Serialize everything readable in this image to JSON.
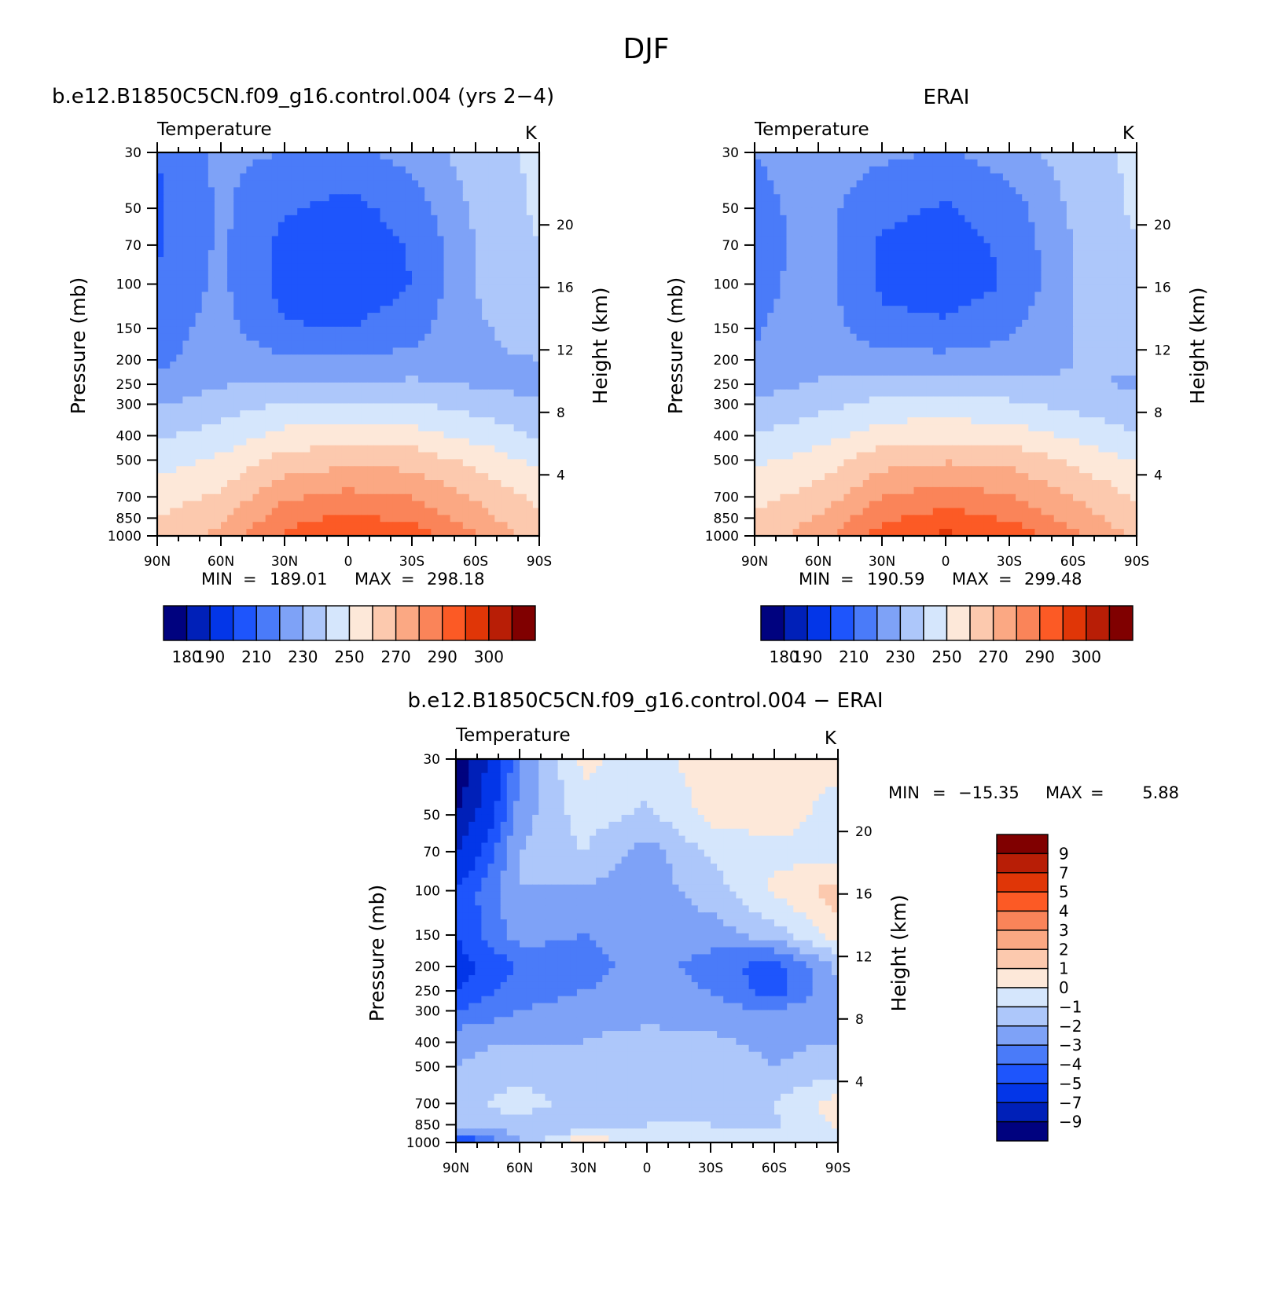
{
  "title": "DJF",
  "panels": [
    {
      "title": "b.e12.B1850C5CN.f09_g16.control.004 (yrs 2−4)",
      "variable": "Temperature",
      "units": "K",
      "min_label": "MIN",
      "min": "189.01",
      "max_label": "MAX",
      "max": "298.18"
    },
    {
      "title": "ERAI",
      "variable": "Temperature",
      "units": "K",
      "min_label": "MIN",
      "min": "190.59",
      "max_label": "MAX",
      "max": "299.48"
    },
    {
      "title": "b.e12.B1850C5CN.f09_g16.control.004 − ERAI",
      "variable": "Temperature",
      "units": "K",
      "min_label": "MIN",
      "min": "−15.35",
      "max_label": "MAX",
      "max": "5.88"
    }
  ],
  "axes": {
    "ylabel_left": "Pressure (mb)",
    "ylabel_right": "Height (km)",
    "pressure_ticks": [
      "30",
      "50",
      "70",
      "100",
      "150",
      "200",
      "250",
      "300",
      "400",
      "500",
      "700",
      "850",
      "1000"
    ],
    "height_ticks": [
      "20",
      "16",
      "12",
      "8",
      "4"
    ],
    "lat_ticks": [
      "90N",
      "60N",
      "30N",
      "0",
      "30S",
      "60S",
      "90S"
    ]
  },
  "colorbars": {
    "temperature": {
      "labels": [
        "180",
        "190",
        "210",
        "230",
        "250",
        "270",
        "290",
        "300"
      ],
      "colors": [
        "#00027f",
        "#0020b8",
        "#0336e8",
        "#1e55fc",
        "#4a7bf9",
        "#7ea2f7",
        "#adc7fa",
        "#d5e6fc",
        "#fde8d9",
        "#fcc9ae",
        "#fba883",
        "#fa8459",
        "#fc5a25",
        "#e03607",
        "#b81e06",
        "#800000"
      ]
    },
    "difference": {
      "labels": [
        "9",
        "7",
        "5",
        "4",
        "3",
        "2",
        "1",
        "0",
        "−1",
        "−2",
        "−3",
        "−4",
        "−5",
        "−7",
        "−9"
      ],
      "colors": [
        "#800000",
        "#b81e06",
        "#e03607",
        "#fc5a25",
        "#fa8459",
        "#fba883",
        "#fcc9ae",
        "#fde8d9",
        "#d5e6fc",
        "#adc7fa",
        "#7ea2f7",
        "#4a7bf9",
        "#1e55fc",
        "#0336e8",
        "#0020b8",
        "#00027f"
      ]
    }
  },
  "chart_data": [
    {
      "type": "heatmap",
      "title": "b.e12.B1850C5CN.f09_g16.control.004 (yrs 2−4)",
      "variable": "Temperature",
      "units": "K",
      "x": [
        -90,
        -60,
        -30,
        0,
        30,
        60,
        90
      ],
      "y_pressure": [
        30,
        50,
        70,
        100,
        150,
        200,
        250,
        300,
        400,
        500,
        700,
        850,
        1000
      ],
      "values": [
        [
          200,
          212,
          210,
          207,
          214,
          225,
          232
        ],
        [
          198,
          212,
          201,
          197,
          204,
          222,
          232
        ],
        [
          198,
          212,
          197,
          194,
          201,
          220,
          230
        ],
        [
          203,
          212,
          196,
          192,
          200,
          220,
          228
        ],
        [
          205,
          214,
          201,
          200,
          206,
          219,
          223
        ],
        [
          207,
          216,
          211,
          211,
          213,
          219,
          220
        ],
        [
          213,
          219,
          222,
          222,
          222,
          219,
          217
        ],
        [
          219,
          225,
          231,
          232,
          231,
          226,
          221
        ],
        [
          229,
          234,
          243,
          245,
          244,
          237,
          229
        ],
        [
          236,
          242,
          254,
          257,
          256,
          247,
          237
        ],
        [
          245,
          252,
          268,
          273,
          270,
          259,
          248
        ],
        [
          250,
          258,
          276,
          282,
          278,
          264,
          251
        ],
        [
          252,
          263,
          282,
          290,
          285,
          271,
          255
        ]
      ],
      "min": 189.01,
      "max": 298.18
    },
    {
      "type": "heatmap",
      "title": "ERAI",
      "variable": "Temperature",
      "units": "K",
      "x": [
        -90,
        -60,
        -30,
        0,
        30,
        60,
        90
      ],
      "y_pressure": [
        30,
        50,
        70,
        100,
        150,
        200,
        250,
        300,
        400,
        500,
        700,
        850,
        1000
      ],
      "values": [
        [
          210,
          214,
          212,
          209,
          215,
          225,
          232
        ],
        [
          207,
          214,
          203,
          199,
          205,
          222,
          232
        ],
        [
          206,
          214,
          198,
          195,
          202,
          220,
          229
        ],
        [
          207,
          214,
          198,
          194,
          201,
          220,
          226
        ],
        [
          209,
          216,
          203,
          202,
          208,
          220,
          224
        ],
        [
          211,
          217,
          213,
          213,
          214,
          220,
          221
        ],
        [
          216,
          221,
          224,
          224,
          223,
          221,
          219
        ],
        [
          221,
          227,
          233,
          234,
          232,
          227,
          222
        ],
        [
          231,
          236,
          245,
          247,
          245,
          238,
          231
        ],
        [
          238,
          244,
          256,
          259,
          257,
          248,
          239
        ],
        [
          247,
          254,
          270,
          275,
          271,
          260,
          249
        ],
        [
          252,
          261,
          278,
          284,
          279,
          266,
          253
        ],
        [
          254,
          266,
          284,
          292,
          287,
          273,
          257
        ]
      ],
      "min": 190.59,
      "max": 299.48
    },
    {
      "type": "heatmap",
      "title": "b.e12.B1850C5CN.f09_g16.control.004 − ERAI",
      "variable": "Temperature",
      "units": "K",
      "x": [
        -90,
        -60,
        -30,
        0,
        30,
        60,
        90
      ],
      "y_pressure": [
        30,
        50,
        70,
        100,
        150,
        200,
        250,
        300,
        400,
        500,
        700,
        850,
        1000
      ],
      "values": [
        [
          -11,
          -3,
          0.3,
          -0.5,
          0.6,
          0.3,
          0.4
        ],
        [
          -9,
          -2.5,
          -0.5,
          -1.2,
          0.3,
          0.6,
          -0.5
        ],
        [
          -7,
          -2,
          -1,
          -2.5,
          -0.8,
          -0.3,
          -0.5
        ],
        [
          -5,
          -2,
          -2.2,
          -2.5,
          -1.5,
          0.2,
          1.5
        ],
        [
          -5,
          -2.5,
          -3,
          -2.5,
          -2.5,
          -1.5,
          0.5
        ],
        [
          -5.5,
          -4,
          -3.5,
          -2.5,
          -3.5,
          -4.5,
          -1.8
        ],
        [
          -5,
          -3.5,
          -3,
          -2.5,
          -3,
          -4.5,
          -2
        ],
        [
          -4,
          -3,
          -2.5,
          -2.5,
          -2.5,
          -3,
          -2
        ],
        [
          -2.2,
          -2,
          -2,
          -1.5,
          -1.8,
          -2.2,
          -2
        ],
        [
          -2,
          -1.5,
          -1.8,
          -1.5,
          -1.5,
          -2,
          -1.5
        ],
        [
          -1.5,
          -0.5,
          -1.5,
          -1.5,
          -1.5,
          -1,
          0.5
        ],
        [
          -1,
          -1.5,
          -2,
          -1,
          -1,
          -1.2,
          0.2
        ],
        [
          -6,
          -2,
          1,
          -0.5,
          -0.8,
          -0.5,
          -1
        ]
      ],
      "min": -15.35,
      "max": 5.88
    }
  ]
}
